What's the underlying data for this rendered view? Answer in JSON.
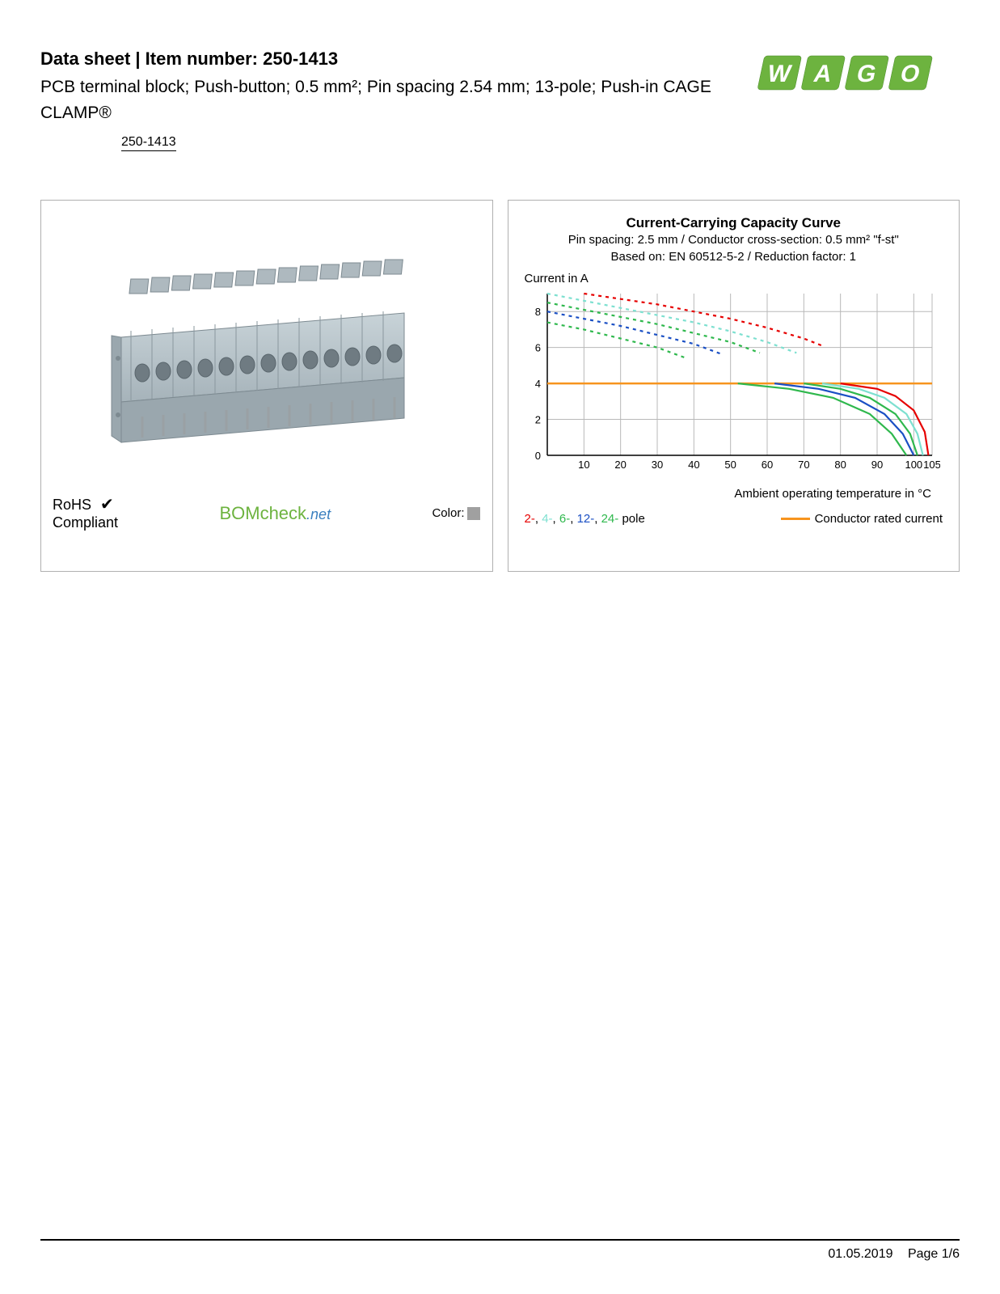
{
  "header": {
    "title_prefix": "Data sheet  |  Item number: ",
    "item_number": "250-1413",
    "subtitle": "PCB terminal block; Push-button; 0.5 mm²; Pin spacing 2.54 mm; 13-pole; Push-in CAGE CLAMP®",
    "badge": "250-1413",
    "logo_text": "WAGO",
    "logo_color": "#6db33f"
  },
  "product_panel": {
    "rohs_line1": "RoHS",
    "rohs_check": "✔",
    "rohs_line2": "Compliant",
    "bomcheck_bom": "BOM",
    "bomcheck_check": "check",
    "bomcheck_net": ".net",
    "color_label": "Color:",
    "color_swatch": "#a0a0a0",
    "product_color": "#b9c6cc",
    "product_shadow": "#8a979e"
  },
  "chart": {
    "title": "Current-Carrying Capacity Curve",
    "sub1": "Pin spacing: 2.5 mm / Conductor cross-section: 0.5 mm² \"f-st\"",
    "sub2": "Based on: EN 60512-5-2 / Reduction factor: 1",
    "ylabel": "Current in A",
    "xlabel": "Ambient operating temperature in °C",
    "xlim": [
      0,
      105
    ],
    "ylim": [
      0,
      9
    ],
    "xtick_labels": [
      "10",
      "20",
      "30",
      "40",
      "50",
      "60",
      "70",
      "80",
      "90",
      "100",
      "105"
    ],
    "ytick_labels": [
      "0",
      "2",
      "4",
      "6",
      "8"
    ],
    "xtick_values": [
      10,
      20,
      30,
      40,
      50,
      60,
      70,
      80,
      90,
      100,
      105
    ],
    "ytick_values": [
      0,
      2,
      4,
      6,
      8
    ],
    "grid_color": "#b8b8b8",
    "axis_color": "#000000",
    "plot_bg": "#ffffff",
    "rated_line_color": "#f7941e",
    "rated_line_y": 4,
    "series": [
      {
        "label": "2-",
        "color": "#e60000",
        "dash": true,
        "points": [
          [
            10,
            9
          ],
          [
            20,
            8.7
          ],
          [
            30,
            8.4
          ],
          [
            40,
            8.0
          ],
          [
            50,
            7.6
          ],
          [
            60,
            7.1
          ],
          [
            70,
            6.5
          ],
          [
            75,
            6.1
          ]
        ]
      },
      {
        "label": "4-",
        "color": "#7de0d0",
        "dash": true,
        "points": [
          [
            0,
            9
          ],
          [
            10,
            8.6
          ],
          [
            20,
            8.2
          ],
          [
            30,
            7.8
          ],
          [
            40,
            7.4
          ],
          [
            50,
            6.9
          ],
          [
            60,
            6.3
          ],
          [
            68,
            5.7
          ]
        ]
      },
      {
        "label": "6-",
        "color": "#2fb84d",
        "dash": true,
        "points": [
          [
            0,
            8.5
          ],
          [
            10,
            8.1
          ],
          [
            20,
            7.7
          ],
          [
            30,
            7.3
          ],
          [
            40,
            6.8
          ],
          [
            50,
            6.3
          ],
          [
            58,
            5.7
          ]
        ]
      },
      {
        "label": "12-",
        "color": "#1a4fc4",
        "dash": true,
        "points": [
          [
            0,
            8.0
          ],
          [
            10,
            7.6
          ],
          [
            20,
            7.2
          ],
          [
            30,
            6.7
          ],
          [
            40,
            6.2
          ],
          [
            48,
            5.6
          ]
        ]
      },
      {
        "label": "24-",
        "color": "#2fb84d",
        "dash": true,
        "points": [
          [
            0,
            7.4
          ],
          [
            10,
            7.0
          ],
          [
            20,
            6.5
          ],
          [
            30,
            6.0
          ],
          [
            38,
            5.4
          ]
        ]
      },
      {
        "label": "2s",
        "color": "#e60000",
        "dash": false,
        "points": [
          [
            80,
            4
          ],
          [
            90,
            3.7
          ],
          [
            95,
            3.3
          ],
          [
            100,
            2.5
          ],
          [
            103,
            1.3
          ],
          [
            104,
            0
          ]
        ]
      },
      {
        "label": "4s",
        "color": "#7de0d0",
        "dash": false,
        "points": [
          [
            75,
            4
          ],
          [
            85,
            3.7
          ],
          [
            92,
            3.2
          ],
          [
            98,
            2.3
          ],
          [
            101,
            1.2
          ],
          [
            102.5,
            0
          ]
        ]
      },
      {
        "label": "6s",
        "color": "#2fb84d",
        "dash": false,
        "points": [
          [
            70,
            4
          ],
          [
            80,
            3.7
          ],
          [
            88,
            3.2
          ],
          [
            95,
            2.3
          ],
          [
            99,
            1.2
          ],
          [
            101,
            0
          ]
        ]
      },
      {
        "label": "12s",
        "color": "#1a4fc4",
        "dash": false,
        "points": [
          [
            62,
            4
          ],
          [
            74,
            3.7
          ],
          [
            84,
            3.2
          ],
          [
            92,
            2.3
          ],
          [
            97,
            1.2
          ],
          [
            100,
            0
          ]
        ]
      },
      {
        "label": "24s",
        "color": "#2fb84d",
        "dash": false,
        "points": [
          [
            52,
            4
          ],
          [
            66,
            3.7
          ],
          [
            78,
            3.2
          ],
          [
            88,
            2.3
          ],
          [
            94,
            1.2
          ],
          [
            98,
            0
          ]
        ]
      }
    ],
    "legend_poles": [
      {
        "text": "2-",
        "color": "#e60000"
      },
      {
        "text": ", "
      },
      {
        "text": "4-",
        "color": "#7de0d0"
      },
      {
        "text": ", "
      },
      {
        "text": "6-",
        "color": "#2fb84d"
      },
      {
        "text": ", "
      },
      {
        "text": "12-",
        "color": "#1a4fc4"
      },
      {
        "text": ", "
      },
      {
        "text": "24-",
        "color": "#2fb84d"
      },
      {
        "text": " pole",
        "color": "#000000"
      }
    ],
    "legend_conductor": "Conductor rated current"
  },
  "footer": {
    "date": "01.05.2019",
    "page": "Page 1/6"
  }
}
